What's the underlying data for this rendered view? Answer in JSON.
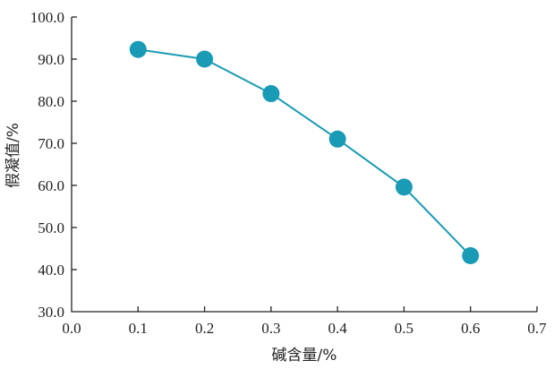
{
  "chart_data": {
    "type": "line",
    "title": "",
    "xlabel": "碱含量/%",
    "ylabel": "假凝值/%",
    "xlim": [
      0.0,
      0.7
    ],
    "ylim": [
      30.0,
      100.0
    ],
    "x_ticks": [
      "0.0",
      "0.1",
      "0.2",
      "0.3",
      "0.4",
      "0.5",
      "0.6",
      "0.7"
    ],
    "y_ticks": [
      "30.0",
      "40.0",
      "50.0",
      "60.0",
      "70.0",
      "80.0",
      "90.0",
      "100.0"
    ],
    "grid": false,
    "series": [
      {
        "x": [
          0.1,
          0.2,
          0.3,
          0.4,
          0.5,
          0.6
        ],
        "y": [
          92.3,
          90.0,
          81.8,
          71.0,
          59.6,
          43.3
        ],
        "color": "#1a9bb5",
        "marker": "circle"
      }
    ]
  }
}
